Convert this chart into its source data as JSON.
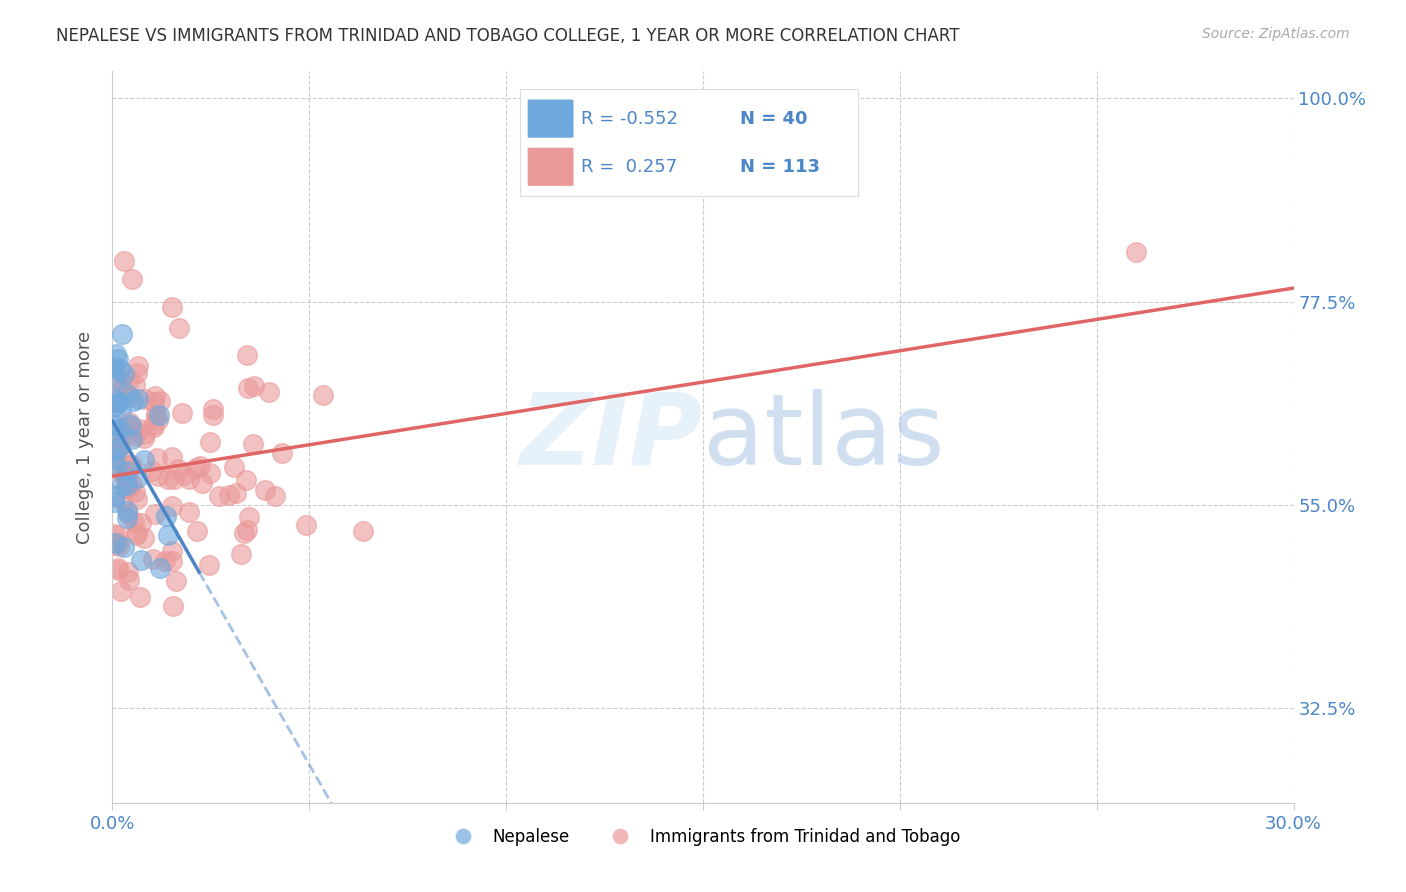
{
  "title": "NEPALESE VS IMMIGRANTS FROM TRINIDAD AND TOBAGO COLLEGE, 1 YEAR OR MORE CORRELATION CHART",
  "source": "Source: ZipAtlas.com",
  "ylabel": "College, 1 year or more",
  "xlim": [
    0.0,
    0.3
  ],
  "ylim": [
    0.22,
    1.03
  ],
  "xtick_positions": [
    0.0,
    0.05,
    0.1,
    0.15,
    0.2,
    0.25,
    0.3
  ],
  "xtick_labels": [
    "0.0%",
    "",
    "",
    "",
    "",
    "",
    "30.0%"
  ],
  "ytick_vals": [
    1.0,
    0.775,
    0.55,
    0.325
  ],
  "ytick_labels_right": [
    "100.0%",
    "77.5%",
    "55.0%",
    "32.5%"
  ],
  "legend_r1": "R = -0.552",
  "legend_n1": "N = 40",
  "legend_r2": "R =  0.257",
  "legend_n2": "N = 113",
  "color_blue": "#6fa8dc",
  "color_pink": "#ea9999",
  "color_line_blue": "#4a86c8",
  "color_line_pink": "#e06666",
  "color_axis_labels": "#4a86c8",
  "color_title": "#333333",
  "color_grid": "#cccccc",
  "background_color": "#ffffff"
}
